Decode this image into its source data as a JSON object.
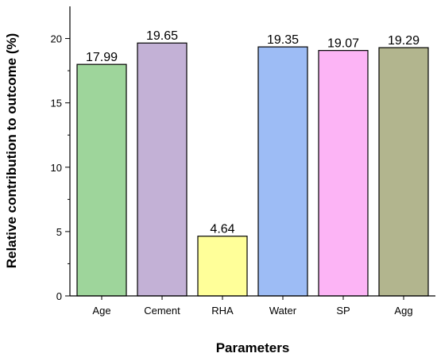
{
  "chart_data": {
    "type": "bar",
    "categories": [
      "Age",
      "Cement",
      "RHA",
      "Water",
      "SP",
      "Agg"
    ],
    "values": [
      17.99,
      19.65,
      4.64,
      19.35,
      19.07,
      19.29
    ],
    "data_labels": [
      "17.99",
      "19.65",
      "4.64",
      "19.35",
      "19.07",
      "19.29"
    ],
    "colors": [
      "#9ed59b",
      "#c3b1d6",
      "#ffff99",
      "#9dbcf5",
      "#fcb4f5",
      "#b2b58e"
    ],
    "xlabel": "Parameters",
    "ylabel": "Relative contribution to outcome (%)",
    "ylim": [
      0,
      22.5
    ],
    "yticks": [
      0,
      5,
      10,
      15,
      20
    ],
    "ytick_labels": [
      "0",
      "5",
      "10",
      "15",
      "20"
    ],
    "grid": false,
    "legend": false
  }
}
